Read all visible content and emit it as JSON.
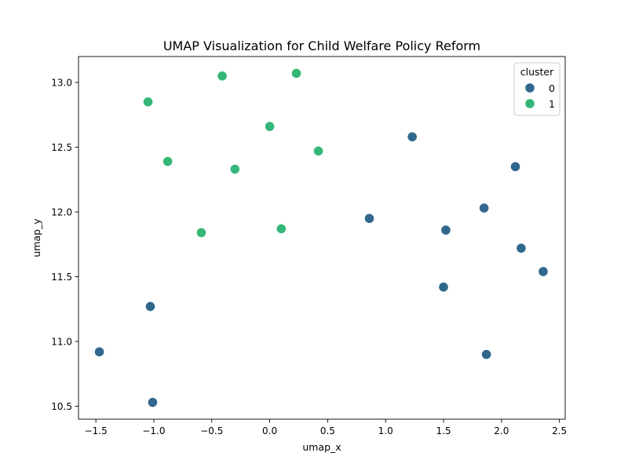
{
  "chart_data": {
    "type": "scatter",
    "title": "UMAP Visualization for Child Welfare Policy Reform",
    "xlabel": "umap_x",
    "ylabel": "umap_y",
    "xlim": [
      -1.65,
      2.55
    ],
    "ylim": [
      10.4,
      13.2
    ],
    "xticks": [
      -1.5,
      -1.0,
      -0.5,
      0.0,
      0.5,
      1.0,
      1.5,
      2.0,
      2.5
    ],
    "xtick_labels": [
      "−1.5",
      "−1.0",
      "−0.5",
      "0.0",
      "0.5",
      "1.0",
      "1.5",
      "2.0",
      "2.5"
    ],
    "yticks": [
      10.5,
      11.0,
      11.5,
      12.0,
      12.5,
      13.0
    ],
    "ytick_labels": [
      "10.5",
      "11.0",
      "11.5",
      "12.0",
      "12.5",
      "13.0"
    ],
    "grid": false,
    "legend": {
      "title": "cluster",
      "placement": "top-right"
    },
    "series": [
      {
        "name": "0",
        "color": "#30678d",
        "points": [
          {
            "x": 1.23,
            "y": 12.58
          },
          {
            "x": 2.12,
            "y": 12.35
          },
          {
            "x": 1.85,
            "y": 12.03
          },
          {
            "x": 0.86,
            "y": 11.95
          },
          {
            "x": 1.52,
            "y": 11.86
          },
          {
            "x": 2.17,
            "y": 11.72
          },
          {
            "x": 2.36,
            "y": 11.54
          },
          {
            "x": 1.5,
            "y": 11.42
          },
          {
            "x": -1.03,
            "y": 11.27
          },
          {
            "x": -1.47,
            "y": 10.92
          },
          {
            "x": 1.87,
            "y": 10.9
          },
          {
            "x": -1.01,
            "y": 10.53
          }
        ]
      },
      {
        "name": "1",
        "color": "#35b778",
        "points": [
          {
            "x": 0.23,
            "y": 13.07
          },
          {
            "x": -0.41,
            "y": 13.05
          },
          {
            "x": -1.05,
            "y": 12.85
          },
          {
            "x": 0.0,
            "y": 12.66
          },
          {
            "x": 0.42,
            "y": 12.47
          },
          {
            "x": -0.88,
            "y": 12.39
          },
          {
            "x": -0.3,
            "y": 12.33
          },
          {
            "x": -0.59,
            "y": 11.84
          },
          {
            "x": 0.1,
            "y": 11.87
          }
        ]
      }
    ]
  }
}
